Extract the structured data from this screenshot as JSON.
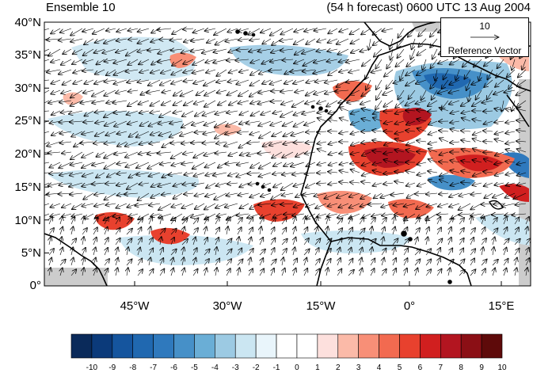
{
  "header": {
    "left_title": "Ensemble 10",
    "right_title": "(54 h forecast) 0600 UTC 13 Aug 2004"
  },
  "map": {
    "projection": "cylindrical equidistant",
    "region": "West Africa / eastern tropical Atlantic",
    "lon_range": [
      -57,
      19
    ],
    "lat_range": [
      0,
      40
    ],
    "y_ticks": [
      "40°N",
      "35°N",
      "30°N",
      "25°N",
      "20°N",
      "15°N",
      "10°N",
      "5°N",
      "0°"
    ],
    "x_ticks": [
      "45°W",
      "30°W",
      "15°W",
      "0°",
      "15°E"
    ],
    "background_color": "#ffffff",
    "missing_color": "#cccccc",
    "coastline_color": "#000000",
    "vector_color": "#000000"
  },
  "reference_vector": {
    "magnitude": "10",
    "label": "Reference Vector"
  },
  "colorbar": {
    "labels": [
      "-10",
      "-9",
      "-8",
      "-7",
      "-6",
      "-5",
      "-4",
      "-3",
      "-2",
      "-1",
      "0",
      "1",
      "2",
      "3",
      "4",
      "5",
      "6",
      "7",
      "8",
      "9",
      "10"
    ],
    "colors": [
      "#0a2a5a",
      "#0b3a7a",
      "#15559e",
      "#2068b0",
      "#2f79bd",
      "#4690c8",
      "#6aaed6",
      "#9ccae3",
      "#cbe6f2",
      "#e9f5fb",
      "#ffffff",
      "#ffffff",
      "#fde0dd",
      "#fbbaa8",
      "#f88f77",
      "#f26a50",
      "#e8412e",
      "#d11f1f",
      "#b31520",
      "#8b0f15",
      "#5e0a0a"
    ]
  }
}
